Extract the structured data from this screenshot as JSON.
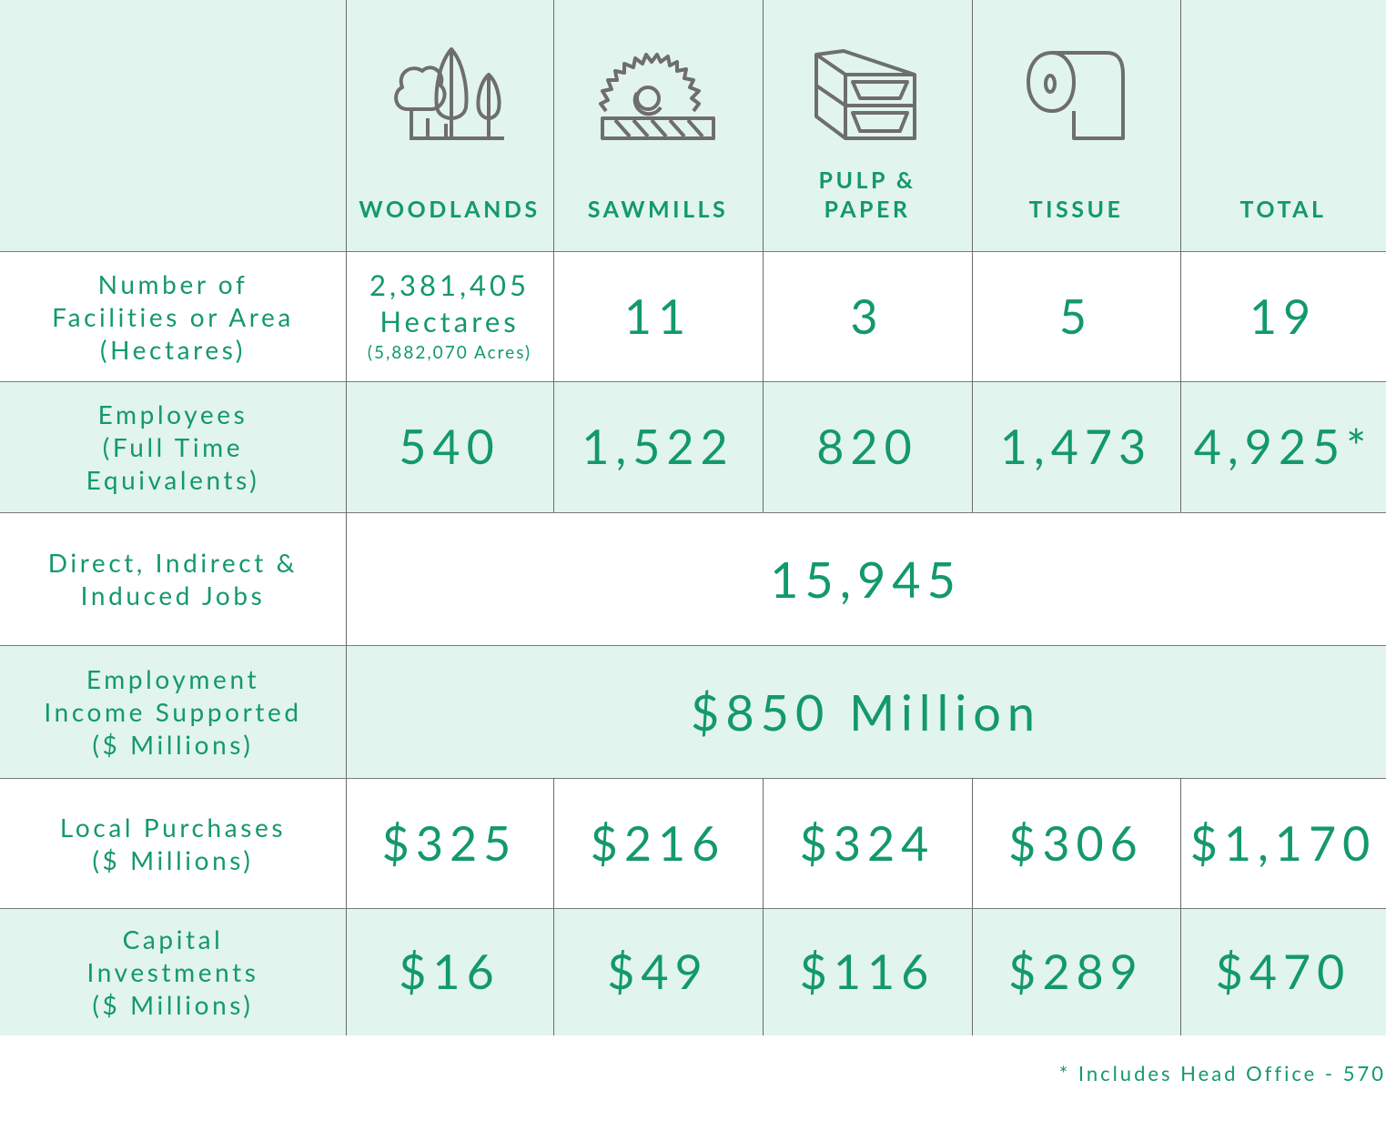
{
  "header": {
    "columns": [
      "WOODLANDS",
      "SAWMILLS",
      "PULP & PAPER",
      "TISSUE",
      "TOTAL"
    ]
  },
  "table": {
    "rows": [
      {
        "label": [
          "Number of",
          "Facilities or Area",
          "(Hectares)"
        ],
        "cells": [
          [
            "2,381,405",
            "Hectares",
            "(5,882,070 Acres)"
          ],
          "11",
          "3",
          "5",
          "19"
        ]
      },
      {
        "label": [
          "Employees",
          "(Full Time",
          "Equivalents)"
        ],
        "cells": [
          "540",
          "1,522",
          "820",
          "1,473",
          "4,925*"
        ]
      },
      {
        "label": [
          "Direct, Indirect &",
          "Induced Jobs"
        ],
        "cells": [
          "15,945"
        ]
      },
      {
        "label": [
          "Employment",
          "Income Supported",
          "($ Millions)"
        ],
        "cells": [
          "$850 Million"
        ]
      },
      {
        "label": [
          "Local Purchases",
          "($ Millions)"
        ],
        "cells": [
          "$325",
          "$216",
          "$324",
          "$306",
          "$1,170"
        ]
      },
      {
        "label": [
          "Capital",
          "Investments",
          "($ Millions)"
        ],
        "cells": [
          "$16",
          "$49",
          "$116",
          "$289",
          "$470"
        ]
      }
    ]
  },
  "footnote": "* Includes Head Office - 570"
}
